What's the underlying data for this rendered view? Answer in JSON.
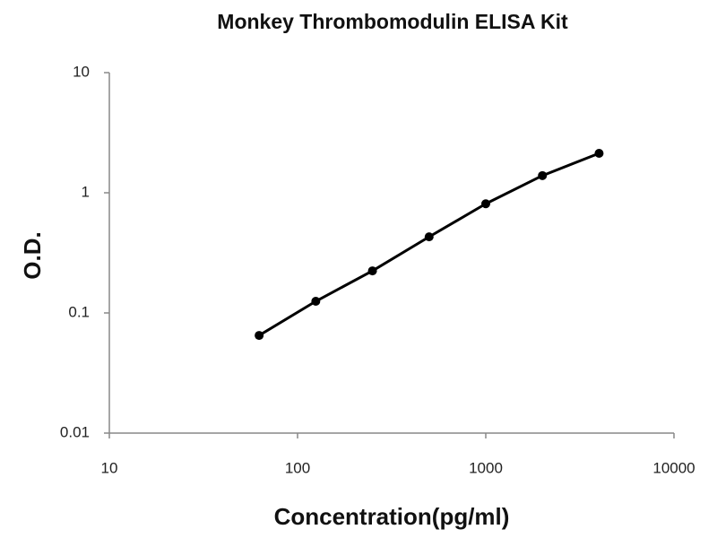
{
  "chart_data": {
    "type": "line",
    "title": "Monkey Thrombomodulin ELISA Kit",
    "x_label": "Concentration(pg/ml)",
    "y_label": "O.D.",
    "x": [
      62.5,
      125,
      250,
      500,
      1000,
      2000,
      4000
    ],
    "series": [
      {
        "color": "#000000",
        "values": [
          0.065,
          0.125,
          0.224,
          0.43,
          0.81,
          1.39,
          2.13
        ]
      }
    ],
    "x_log": true,
    "y_log": true,
    "xlim": [
      10,
      10000
    ],
    "xticks": [
      10,
      100,
      1000,
      10000
    ],
    "ylim": [
      0.01,
      10
    ],
    "yticks": [
      0.01,
      0.1,
      1,
      10
    ]
  }
}
